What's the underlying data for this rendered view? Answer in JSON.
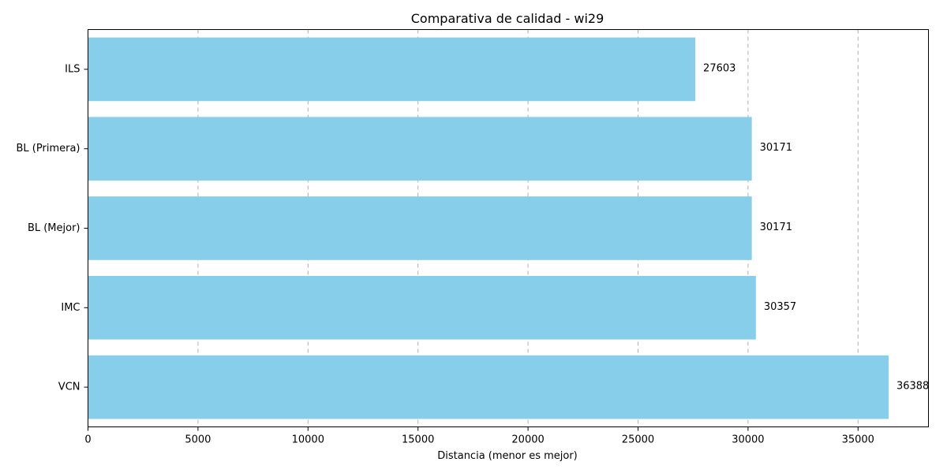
{
  "chart_data": {
    "type": "bar",
    "orientation": "horizontal",
    "title": "Comparativa de calidad - wi29",
    "xlabel": "Distancia (menor es mejor)",
    "ylabel": "",
    "categories": [
      "ILS",
      "BL (Primera)",
      "BL (Mejor)",
      "IMC",
      "VCN"
    ],
    "values": [
      27603,
      30171,
      30171,
      30357,
      36388
    ],
    "data_labels": [
      "27603",
      "30171",
      "30171",
      "30357",
      "36388"
    ],
    "xlim": [
      0,
      38200
    ],
    "xticks": [
      0,
      5000,
      10000,
      15000,
      20000,
      25000,
      30000,
      35000
    ],
    "xtick_labels": [
      "0",
      "5000",
      "10000",
      "15000",
      "20000",
      "25000",
      "30000",
      "35000"
    ],
    "grid": "x-axis dashed",
    "bar_color": "#87CEEB"
  }
}
